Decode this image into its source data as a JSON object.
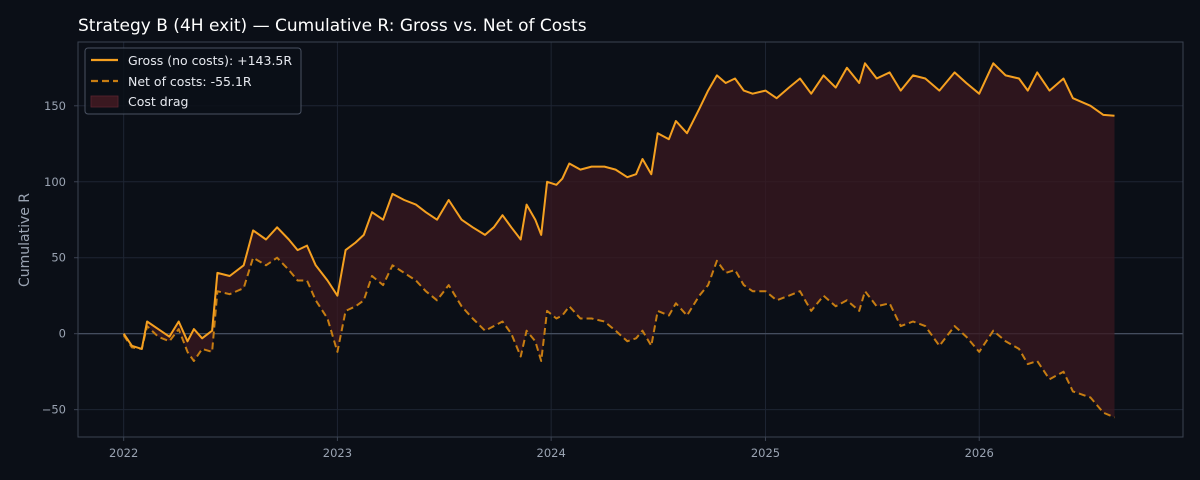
{
  "colors": {
    "background": "#0b0f17",
    "plot_background": "#0b0f17",
    "grid": "#1e2533",
    "axis": "#3b4352",
    "zero_line": "#4b5566",
    "gross": "#f5a020",
    "net": "#c77d12",
    "cost_fill": "#3a1820"
  },
  "chart_data": {
    "type": "line",
    "title": "Strategy B (4H exit) — Cumulative R: Gross vs. Net of Costs",
    "xlabel": "",
    "ylabel": "Cumulative R",
    "xlim": [
      "2021-10-15",
      "2026-12-15"
    ],
    "ylim": [
      -68,
      192
    ],
    "xticks": [
      "2022",
      "2023",
      "2024",
      "2025",
      "2026"
    ],
    "yticks": [
      -50,
      0,
      50,
      100,
      150
    ],
    "grid": true,
    "legend_position": "top-left",
    "zero_line": true,
    "fill_between": {
      "label": "Cost drag",
      "upper": "Gross (no costs): +143.5R",
      "lower": "Net of costs: -55.1R"
    },
    "series": [
      {
        "name": "Gross (no costs): +143.5R",
        "style": "solid",
        "points": [
          [
            "2022-01-01",
            0
          ],
          [
            "2022-01-15",
            -8
          ],
          [
            "2022-02-01",
            -10
          ],
          [
            "2022-02-10",
            8
          ],
          [
            "2022-03-01",
            3
          ],
          [
            "2022-03-20",
            -2
          ],
          [
            "2022-04-05",
            8
          ],
          [
            "2022-04-20",
            -5
          ],
          [
            "2022-05-01",
            3
          ],
          [
            "2022-05-15",
            -3
          ],
          [
            "2022-06-01",
            2
          ],
          [
            "2022-06-10",
            40
          ],
          [
            "2022-07-01",
            38
          ],
          [
            "2022-07-25",
            45
          ],
          [
            "2022-08-10",
            68
          ],
          [
            "2022-09-01",
            62
          ],
          [
            "2022-09-20",
            70
          ],
          [
            "2022-10-10",
            62
          ],
          [
            "2022-10-25",
            55
          ],
          [
            "2022-11-10",
            58
          ],
          [
            "2022-11-25",
            45
          ],
          [
            "2022-12-15",
            35
          ],
          [
            "2023-01-01",
            25
          ],
          [
            "2023-01-15",
            55
          ],
          [
            "2023-02-01",
            60
          ],
          [
            "2023-02-15",
            65
          ],
          [
            "2023-03-01",
            80
          ],
          [
            "2023-03-20",
            75
          ],
          [
            "2023-04-05",
            92
          ],
          [
            "2023-04-25",
            88
          ],
          [
            "2023-05-15",
            85
          ],
          [
            "2023-06-01",
            80
          ],
          [
            "2023-06-20",
            75
          ],
          [
            "2023-07-10",
            88
          ],
          [
            "2023-08-01",
            75
          ],
          [
            "2023-08-20",
            70
          ],
          [
            "2023-09-10",
            65
          ],
          [
            "2023-09-25",
            70
          ],
          [
            "2023-10-10",
            78
          ],
          [
            "2023-10-25",
            70
          ],
          [
            "2023-11-10",
            62
          ],
          [
            "2023-11-20",
            85
          ],
          [
            "2023-12-05",
            75
          ],
          [
            "2023-12-15",
            65
          ],
          [
            "2023-12-25",
            100
          ],
          [
            "2024-01-10",
            98
          ],
          [
            "2024-01-20",
            102
          ],
          [
            "2024-02-01",
            112
          ],
          [
            "2024-02-20",
            108
          ],
          [
            "2024-03-10",
            110
          ],
          [
            "2024-04-01",
            110
          ],
          [
            "2024-04-20",
            108
          ],
          [
            "2024-05-10",
            103
          ],
          [
            "2024-05-25",
            105
          ],
          [
            "2024-06-05",
            115
          ],
          [
            "2024-06-20",
            105
          ],
          [
            "2024-07-01",
            132
          ],
          [
            "2024-07-20",
            128
          ],
          [
            "2024-08-01",
            140
          ],
          [
            "2024-08-20",
            132
          ],
          [
            "2024-09-10",
            148
          ],
          [
            "2024-09-25",
            160
          ],
          [
            "2024-10-10",
            170
          ],
          [
            "2024-10-25",
            165
          ],
          [
            "2024-11-10",
            168
          ],
          [
            "2024-11-25",
            160
          ],
          [
            "2024-12-10",
            158
          ],
          [
            "2025-01-01",
            160
          ],
          [
            "2025-01-20",
            155
          ],
          [
            "2025-02-10",
            162
          ],
          [
            "2025-03-01",
            168
          ],
          [
            "2025-03-20",
            158
          ],
          [
            "2025-04-10",
            170
          ],
          [
            "2025-05-01",
            162
          ],
          [
            "2025-05-20",
            175
          ],
          [
            "2025-06-10",
            165
          ],
          [
            "2025-06-20",
            178
          ],
          [
            "2025-07-10",
            168
          ],
          [
            "2025-08-01",
            172
          ],
          [
            "2025-08-20",
            160
          ],
          [
            "2025-09-10",
            170
          ],
          [
            "2025-10-01",
            168
          ],
          [
            "2025-10-25",
            160
          ],
          [
            "2025-11-20",
            172
          ],
          [
            "2025-12-10",
            165
          ],
          [
            "2026-01-01",
            158
          ],
          [
            "2026-01-25",
            178
          ],
          [
            "2026-02-15",
            170
          ],
          [
            "2026-03-10",
            168
          ],
          [
            "2026-03-25",
            160
          ],
          [
            "2026-04-10",
            172
          ],
          [
            "2026-05-01",
            160
          ],
          [
            "2026-05-25",
            168
          ],
          [
            "2026-06-10",
            155
          ],
          [
            "2026-07-10",
            150
          ],
          [
            "2026-08-01",
            144
          ],
          [
            "2026-08-20",
            143.5
          ]
        ]
      },
      {
        "name": "Net of costs: -55.1R",
        "style": "dashed",
        "points": [
          [
            "2022-01-01",
            -1
          ],
          [
            "2022-01-15",
            -9
          ],
          [
            "2022-02-01",
            -10
          ],
          [
            "2022-02-10",
            5
          ],
          [
            "2022-03-01",
            -2
          ],
          [
            "2022-03-20",
            -5
          ],
          [
            "2022-04-05",
            3
          ],
          [
            "2022-04-20",
            -12
          ],
          [
            "2022-05-01",
            -18
          ],
          [
            "2022-05-15",
            -10
          ],
          [
            "2022-06-01",
            -12
          ],
          [
            "2022-06-10",
            28
          ],
          [
            "2022-07-01",
            26
          ],
          [
            "2022-07-25",
            30
          ],
          [
            "2022-08-10",
            50
          ],
          [
            "2022-09-01",
            45
          ],
          [
            "2022-09-20",
            50
          ],
          [
            "2022-10-10",
            42
          ],
          [
            "2022-10-25",
            35
          ],
          [
            "2022-11-10",
            35
          ],
          [
            "2022-11-25",
            22
          ],
          [
            "2022-12-15",
            10
          ],
          [
            "2023-01-01",
            -12
          ],
          [
            "2023-01-15",
            15
          ],
          [
            "2023-02-01",
            18
          ],
          [
            "2023-02-15",
            22
          ],
          [
            "2023-03-01",
            38
          ],
          [
            "2023-03-20",
            32
          ],
          [
            "2023-04-05",
            45
          ],
          [
            "2023-04-25",
            40
          ],
          [
            "2023-05-15",
            35
          ],
          [
            "2023-06-01",
            28
          ],
          [
            "2023-06-20",
            22
          ],
          [
            "2023-07-10",
            32
          ],
          [
            "2023-08-01",
            18
          ],
          [
            "2023-08-20",
            10
          ],
          [
            "2023-09-10",
            2
          ],
          [
            "2023-09-25",
            5
          ],
          [
            "2023-10-10",
            8
          ],
          [
            "2023-10-25",
            0
          ],
          [
            "2023-11-10",
            -15
          ],
          [
            "2023-11-20",
            2
          ],
          [
            "2023-12-05",
            -5
          ],
          [
            "2023-12-15",
            -18
          ],
          [
            "2023-12-25",
            15
          ],
          [
            "2024-01-10",
            10
          ],
          [
            "2024-01-20",
            12
          ],
          [
            "2024-02-01",
            18
          ],
          [
            "2024-02-20",
            10
          ],
          [
            "2024-03-10",
            10
          ],
          [
            "2024-04-01",
            8
          ],
          [
            "2024-04-20",
            2
          ],
          [
            "2024-05-10",
            -5
          ],
          [
            "2024-05-25",
            -3
          ],
          [
            "2024-06-05",
            2
          ],
          [
            "2024-06-20",
            -8
          ],
          [
            "2024-07-01",
            15
          ],
          [
            "2024-07-20",
            12
          ],
          [
            "2024-08-01",
            20
          ],
          [
            "2024-08-20",
            12
          ],
          [
            "2024-09-10",
            25
          ],
          [
            "2024-09-25",
            32
          ],
          [
            "2024-10-10",
            48
          ],
          [
            "2024-10-25",
            40
          ],
          [
            "2024-11-10",
            42
          ],
          [
            "2024-11-25",
            32
          ],
          [
            "2024-12-10",
            28
          ],
          [
            "2025-01-01",
            28
          ],
          [
            "2025-01-20",
            22
          ],
          [
            "2025-02-10",
            25
          ],
          [
            "2025-03-01",
            28
          ],
          [
            "2025-03-20",
            15
          ],
          [
            "2025-04-10",
            25
          ],
          [
            "2025-05-01",
            18
          ],
          [
            "2025-05-20",
            22
          ],
          [
            "2025-06-10",
            15
          ],
          [
            "2025-06-20",
            28
          ],
          [
            "2025-07-10",
            18
          ],
          [
            "2025-08-01",
            20
          ],
          [
            "2025-08-20",
            5
          ],
          [
            "2025-09-10",
            8
          ],
          [
            "2025-10-01",
            5
          ],
          [
            "2025-10-25",
            -8
          ],
          [
            "2025-11-20",
            5
          ],
          [
            "2025-12-10",
            -2
          ],
          [
            "2026-01-01",
            -12
          ],
          [
            "2026-01-25",
            2
          ],
          [
            "2026-02-15",
            -5
          ],
          [
            "2026-03-10",
            -10
          ],
          [
            "2026-03-25",
            -20
          ],
          [
            "2026-04-10",
            -18
          ],
          [
            "2026-05-01",
            -30
          ],
          [
            "2026-05-25",
            -25
          ],
          [
            "2026-06-10",
            -38
          ],
          [
            "2026-07-10",
            -42
          ],
          [
            "2026-08-01",
            -52
          ],
          [
            "2026-08-20",
            -55.1
          ]
        ]
      }
    ]
  }
}
